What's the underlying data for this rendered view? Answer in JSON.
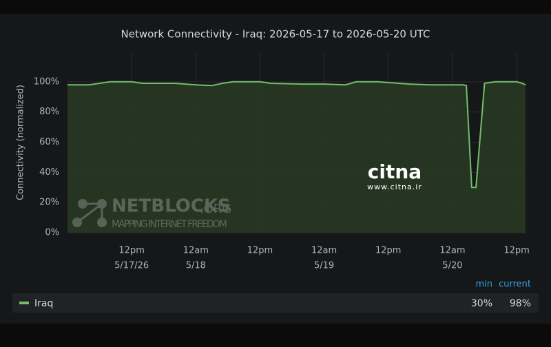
{
  "chart_data": {
    "type": "line",
    "title": "Network Connectivity - Iraq: 2026-05-17 to 2026-05-20 UTC",
    "y_label": "Connectivity (normalized)",
    "x": [
      "2026-05-17T00:00",
      "2026-05-17T04:00",
      "2026-05-17T08:00",
      "2026-05-17T12:00",
      "2026-05-17T14:00",
      "2026-05-17T20:00",
      "2026-05-18T00:00",
      "2026-05-18T03:00",
      "2026-05-18T05:00",
      "2026-05-18T07:00",
      "2026-05-18T12:00",
      "2026-05-18T14:00",
      "2026-05-18T20:00",
      "2026-05-19T00:00",
      "2026-05-19T04:00",
      "2026-05-19T06:00",
      "2026-05-19T10:00",
      "2026-05-19T14:00",
      "2026-05-19T16:00",
      "2026-05-19T20:00",
      "2026-05-20T00:00",
      "2026-05-20T02:00",
      "2026-05-20T02:36",
      "2026-05-20T03:36",
      "2026-05-20T04:24",
      "2026-05-20T06:00",
      "2026-05-20T08:00",
      "2026-05-20T12:00",
      "2026-05-20T13:00",
      "2026-05-20T13:40"
    ],
    "series": [
      {
        "name": "Iraq",
        "color": "#73bf69",
        "fill": "#283823",
        "values": [
          98,
          98,
          100,
          100,
          99,
          99,
          98,
          97.5,
          99,
          100,
          100,
          99,
          98.5,
          98.5,
          98,
          100,
          100,
          99,
          98.5,
          98,
          98,
          98,
          97.5,
          30,
          30,
          99,
          100,
          100,
          99,
          98
        ]
      }
    ],
    "xlim": [
      "2026-05-17T00:00",
      "2026-05-20T13:40"
    ],
    "xticks": [
      {
        "value": "2026-05-17T12:00",
        "label": "12pm"
      },
      {
        "value": "2026-05-18T00:00",
        "label": "12am"
      },
      {
        "value": "2026-05-18T12:00",
        "label": "12pm"
      },
      {
        "value": "2026-05-19T00:00",
        "label": "12am"
      },
      {
        "value": "2026-05-19T12:00",
        "label": "12pm"
      },
      {
        "value": "2026-05-20T00:00",
        "label": "12am"
      },
      {
        "value": "2026-05-20T12:00",
        "label": "12pm"
      }
    ],
    "xdate_labels": [
      {
        "value": "2026-05-17T12:00",
        "label": "5/17/26"
      },
      {
        "value": "2026-05-18T00:00",
        "label": "5/18"
      },
      {
        "value": "2026-05-19T00:00",
        "label": "5/19"
      },
      {
        "value": "2026-05-20T00:00",
        "label": "5/20"
      }
    ],
    "ylim": [
      0,
      120
    ],
    "yticks": [
      {
        "value": 0,
        "label": "0%"
      },
      {
        "value": 20,
        "label": "20%"
      },
      {
        "value": 40,
        "label": "40%"
      },
      {
        "value": 60,
        "label": "60%"
      },
      {
        "value": 80,
        "label": "80%"
      },
      {
        "value": 100,
        "label": "100%"
      }
    ],
    "grid": true,
    "legend_stats": [
      {
        "name": "min",
        "value": 30,
        "label": "30%"
      },
      {
        "name": "current",
        "value": 98,
        "label": "98%"
      }
    ],
    "watermarks": {
      "netblocks": "NETBLOCKS",
      "netblocks_suffix": ".ORG",
      "netblocks_tagline": "MAPPING INTERNET FREEDOM",
      "citna": "citna",
      "citna_url": "www.citna.ir"
    }
  }
}
